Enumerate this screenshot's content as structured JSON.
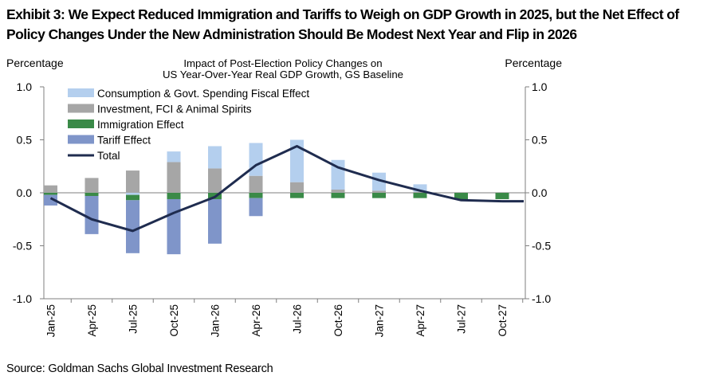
{
  "title": "Exhibit 3: We Expect Reduced Immigration and Tariffs to Weigh on GDP Growth in 2025, but the Net Effect of Policy Changes Under the New Administration Should Be Modest Next Year and Flip in 2026",
  "source": "Source: Goldman Sachs Global Investment Research",
  "chart_data": {
    "type": "bar",
    "title": "Impact of Post-Election Policy Changes on US Year-Over-Year Real GDP Growth, GS Baseline",
    "title_lines": [
      "Impact of Post-Election Policy Changes on",
      "US Year-Over-Year Real GDP Growth, GS Baseline"
    ],
    "ylabel_left": "Percentage",
    "ylabel_right": "Percentage",
    "ylim": [
      -1.0,
      1.0
    ],
    "yticks": [
      "1.0",
      "0.5",
      "0.0",
      "-0.5",
      "-1.0"
    ],
    "ytick_values": [
      1.0,
      0.5,
      0.0,
      -0.5,
      -1.0
    ],
    "x_tick_labels": [
      "Jan-25",
      "Apr-25",
      "Jul-25",
      "Oct-25",
      "Jan-26",
      "Apr-26",
      "Jul-26",
      "Oct-26",
      "Jan-27",
      "Apr-27",
      "Jul-27",
      "Oct-27"
    ],
    "categories": [
      "Jan-25",
      "Apr-25",
      "Jul-25",
      "Oct-25",
      "Jan-26",
      "Apr-26",
      "Jul-26",
      "Oct-26",
      "Jan-27",
      "Apr-27",
      "Jul-27",
      "Oct-27"
    ],
    "stacked": true,
    "legend_position": "top-left",
    "grid": false,
    "series": [
      {
        "name": "Consumption & Govt. Spending Fiscal Effect",
        "type": "bar",
        "color": "#b4cfee",
        "values": [
          0.0,
          0.0,
          -0.02,
          0.1,
          0.21,
          0.31,
          0.4,
          0.28,
          0.17,
          0.07,
          0.0,
          0.0
        ]
      },
      {
        "name": "Investment, FCI & Animal Spirits",
        "type": "bar",
        "color": "#a6a6a6",
        "values": [
          0.07,
          0.14,
          0.21,
          0.29,
          0.23,
          0.16,
          0.1,
          0.03,
          0.02,
          0.01,
          0.0,
          0.0
        ]
      },
      {
        "name": "Immigration Effect",
        "type": "bar",
        "color": "#3a8a48",
        "values": [
          -0.02,
          -0.03,
          -0.05,
          -0.06,
          -0.06,
          -0.05,
          -0.05,
          -0.05,
          -0.05,
          -0.05,
          -0.06,
          -0.06
        ]
      },
      {
        "name": "Tariff Effect",
        "type": "bar",
        "color": "#7f95c9",
        "values": [
          -0.1,
          -0.36,
          -0.5,
          -0.52,
          -0.42,
          -0.17,
          0.0,
          0.0,
          0.0,
          0.0,
          0.0,
          0.0
        ]
      },
      {
        "name": "Total",
        "type": "line",
        "color": "#1f2c4f",
        "values": [
          -0.05,
          -0.25,
          -0.36,
          -0.19,
          -0.04,
          0.26,
          0.44,
          0.24,
          0.12,
          0.02,
          -0.07,
          -0.08
        ]
      }
    ],
    "colors": {
      "axis": "#7f7f7f",
      "text": "#000000"
    }
  }
}
